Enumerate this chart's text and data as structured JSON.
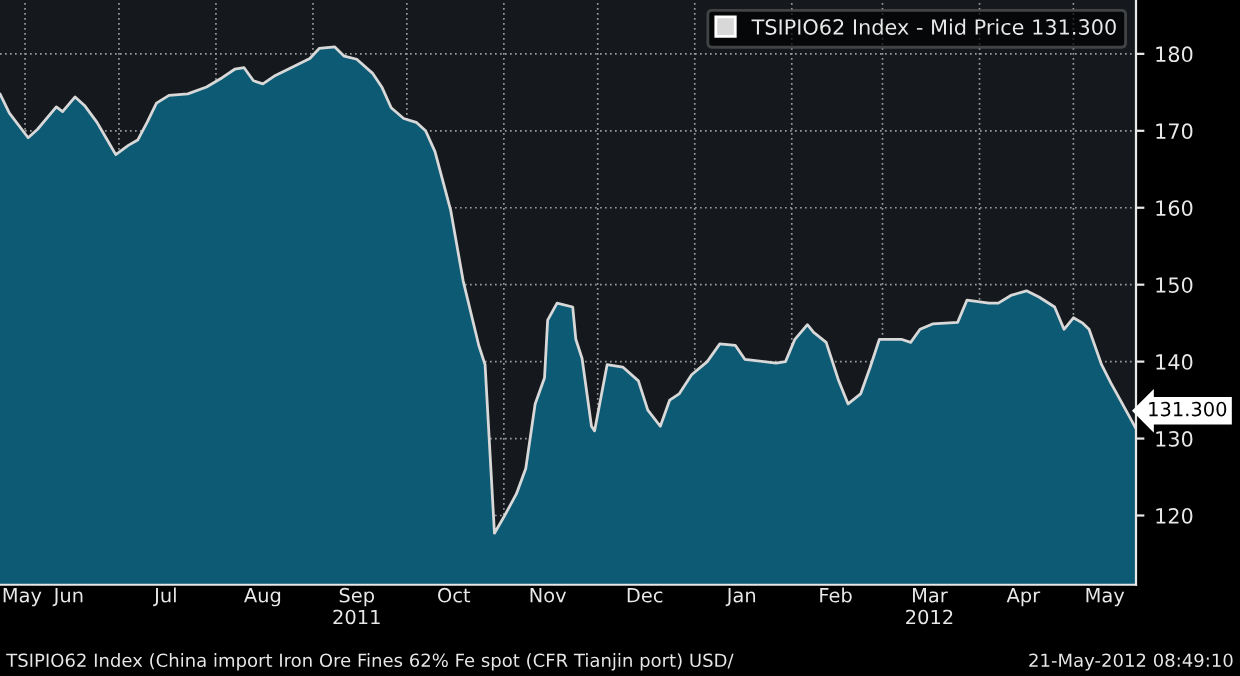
{
  "chart_data": {
    "type": "area",
    "series": [
      {
        "name": "TSIPIO62 Index - Mid Price 131.300",
        "color": "#d8d8d8",
        "x": [
          "2011-05-24",
          "2011-05-27",
          "2011-06-02",
          "2011-06-05",
          "2011-06-11",
          "2011-06-13",
          "2011-06-17",
          "2011-06-20",
          "2011-06-24",
          "2011-06-27",
          "2011-06-30",
          "2011-07-04",
          "2011-07-07",
          "2011-07-10",
          "2011-07-13",
          "2011-07-17",
          "2011-07-23",
          "2011-07-29",
          "2011-08-03",
          "2011-08-07",
          "2011-08-10",
          "2011-08-13",
          "2011-08-16",
          "2011-08-20",
          "2011-08-26",
          "2011-08-31",
          "2011-09-03",
          "2011-09-08",
          "2011-09-11",
          "2011-09-15",
          "2011-09-20",
          "2011-09-23",
          "2011-09-26",
          "2011-09-30",
          "2011-10-04",
          "2011-10-07",
          "2011-10-10",
          "2011-10-15",
          "2011-10-19",
          "2011-10-24",
          "2011-10-26",
          "2011-10-29",
          "2011-11-01",
          "2011-11-05",
          "2011-11-08",
          "2011-11-11",
          "2011-11-14",
          "2011-11-15",
          "2011-11-18",
          "2011-11-23",
          "2011-11-24",
          "2011-11-26",
          "2011-11-29",
          "2011-11-30",
          "2011-12-04",
          "2011-12-09",
          "2011-12-14",
          "2011-12-17",
          "2011-12-21",
          "2011-12-24",
          "2011-12-27",
          "2011-12-31",
          "2012-01-05",
          "2012-01-09",
          "2012-01-14",
          "2012-01-17",
          "2012-01-27",
          "2012-01-30",
          "2012-02-02",
          "2012-02-06",
          "2012-02-08",
          "2012-02-12",
          "2012-02-16",
          "2012-02-19",
          "2012-02-23",
          "2012-02-26",
          "2012-02-29",
          "2012-03-07",
          "2012-03-10",
          "2012-03-13",
          "2012-03-17",
          "2012-03-21",
          "2012-03-25",
          "2012-03-28",
          "2012-04-04",
          "2012-04-07",
          "2012-04-11",
          "2012-04-16",
          "2012-04-20",
          "2012-04-25",
          "2012-04-28",
          "2012-05-01",
          "2012-05-04",
          "2012-05-06",
          "2012-05-10",
          "2012-05-13",
          "2012-05-16",
          "2012-05-21"
        ],
        "values": [
          174.8,
          172.3,
          169.1,
          170.2,
          173.1,
          172.5,
          174.4,
          173.3,
          171.1,
          169.0,
          166.9,
          168.1,
          168.8,
          171.1,
          173.6,
          174.6,
          174.8,
          175.7,
          176.9,
          178.0,
          178.2,
          176.5,
          176.1,
          177.2,
          178.4,
          179.4,
          180.7,
          180.9,
          179.7,
          179.3,
          177.5,
          175.7,
          173.0,
          171.6,
          171.1,
          170.0,
          167.3,
          159.7,
          150.5,
          142.1,
          139.6,
          117.7,
          119.8,
          122.8,
          126.1,
          134.5,
          137.9,
          145.4,
          147.6,
          147.1,
          142.9,
          140.4,
          131.6,
          131.0,
          139.6,
          139.3,
          137.5,
          133.7,
          131.6,
          135.0,
          135.8,
          138.3,
          140.0,
          142.3,
          142.1,
          140.3,
          139.8,
          140.0,
          142.9,
          144.8,
          143.8,
          142.5,
          137.5,
          134.5,
          135.8,
          139.2,
          142.9,
          142.9,
          142.5,
          144.2,
          144.9,
          145.0,
          145.1,
          148.0,
          147.6,
          147.6,
          148.6,
          149.2,
          148.4,
          147.1,
          144.2,
          145.7,
          145.0,
          144.2,
          139.6,
          137.2,
          135.0,
          131.3
        ]
      }
    ],
    "xlim": [
      "2011-05-24",
      "2012-05-21"
    ],
    "xticks": [
      {
        "value": "2011-05-31",
        "label": "May"
      },
      {
        "value": "2011-06-01",
        "label": null
      },
      {
        "value": "2011-06-15",
        "label": "Jun"
      },
      {
        "value": "2011-07-01",
        "label": null
      },
      {
        "value": "2011-07-16",
        "label": "Jul"
      },
      {
        "value": "2011-08-01",
        "label": null
      },
      {
        "value": "2011-08-16",
        "label": "Aug"
      },
      {
        "value": "2011-09-01",
        "label": null
      },
      {
        "value": "2011-09-15",
        "label": "Sep\n2011"
      },
      {
        "value": "2011-10-01",
        "label": null
      },
      {
        "value": "2011-10-16",
        "label": "Oct"
      },
      {
        "value": "2011-11-01",
        "label": null
      },
      {
        "value": "2011-11-15",
        "label": "Nov"
      },
      {
        "value": "2011-12-01",
        "label": null
      },
      {
        "value": "2011-12-16",
        "label": "Dec"
      },
      {
        "value": "2012-01-01",
        "label": null
      },
      {
        "value": "2012-01-16",
        "label": "Jan"
      },
      {
        "value": "2012-02-01",
        "label": null
      },
      {
        "value": "2012-02-15",
        "label": "Feb"
      },
      {
        "value": "2012-03-01",
        "label": null
      },
      {
        "value": "2012-03-16",
        "label": "Mar\n2012"
      },
      {
        "value": "2012-04-01",
        "label": null
      },
      {
        "value": "2012-04-15",
        "label": "Apr"
      },
      {
        "value": "2012-05-01",
        "label": null
      },
      {
        "value": "2012-05-11",
        "label": "May"
      }
    ],
    "ylim": [
      111,
      187
    ],
    "yticks": [
      120,
      130,
      140,
      150,
      160,
      170,
      180
    ],
    "grid": true,
    "legend": "top right",
    "annotations": [
      "TSIPIO62 Index (China import Iron Ore Fines 62% Fe spot (CFR Tianjin port) USD/",
      "21-May-2012 08:49:10",
      {
        "text": "131.300",
        "x": "2012-05-21",
        "y": 131.3
      }
    ]
  }
}
